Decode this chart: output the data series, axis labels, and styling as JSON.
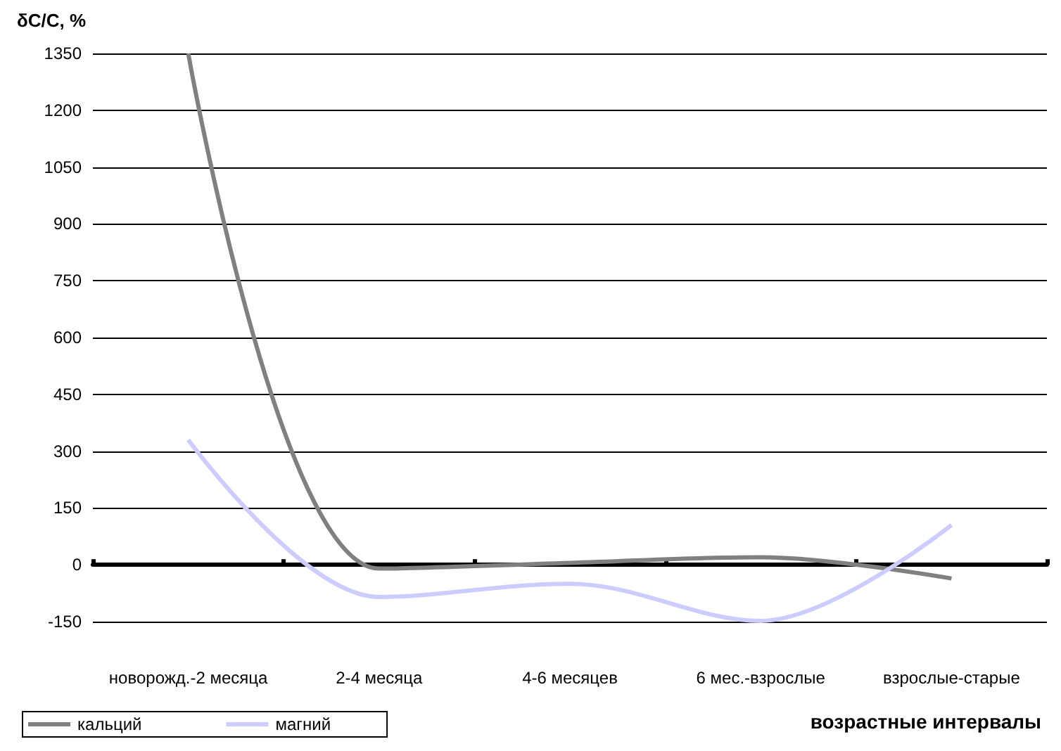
{
  "chart_data": {
    "type": "line",
    "ylabel": "δC/C, %",
    "xlabel": "возрастные интервалы",
    "categories": [
      "новорожд.-2 месяца",
      "2-4 месяца",
      "4-6 месяцев",
      "6 мес.-взрослые",
      "взрослые-старые"
    ],
    "series": [
      {
        "name": "кальций",
        "color": "#808080",
        "values": [
          1350,
          -10,
          5,
          20,
          -36
        ]
      },
      {
        "name": "магний",
        "color": "#ccccff",
        "values": [
          330,
          -85,
          -50,
          -148,
          105
        ]
      }
    ],
    "ylim": [
      -150,
      1350
    ],
    "yticks": [
      -150,
      0,
      150,
      300,
      450,
      600,
      750,
      900,
      1050,
      1200,
      1350
    ],
    "grid": "y",
    "legend": "bottom left",
    "marker": "none",
    "line_style": "solid"
  }
}
